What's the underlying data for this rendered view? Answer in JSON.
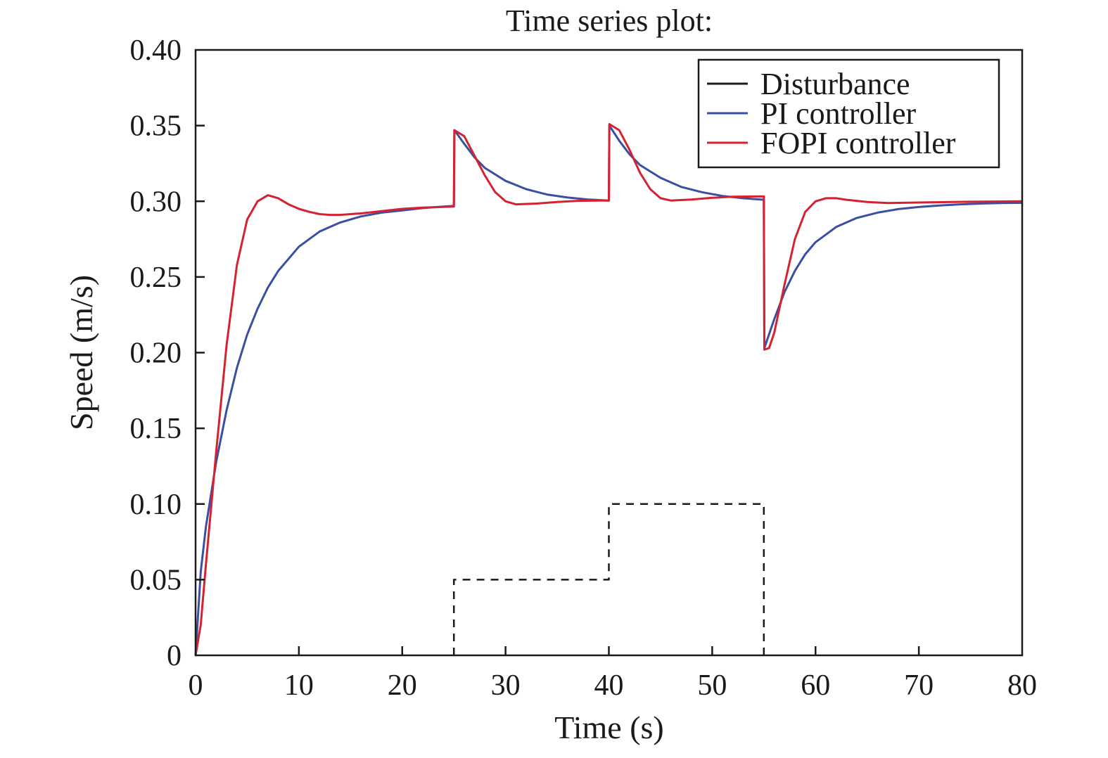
{
  "chart_data": {
    "type": "line",
    "title": "Time series plot:",
    "xlabel": "Time (s)",
    "ylabel": "Speed (m/s)",
    "xlim": [
      0,
      80
    ],
    "ylim": [
      0,
      0.4
    ],
    "xticks": [
      0,
      10,
      20,
      30,
      40,
      50,
      60,
      70,
      80
    ],
    "xtick_labels": [
      "0",
      "10",
      "20",
      "30",
      "40",
      "50",
      "60",
      "70",
      "80"
    ],
    "yticks": [
      0,
      0.05,
      0.1,
      0.15,
      0.2,
      0.25,
      0.3,
      0.35,
      0.4
    ],
    "ytick_labels": [
      "0",
      "0.05",
      "0.10",
      "0.15",
      "0.20",
      "0.25",
      "0.30",
      "0.35",
      "0.40"
    ],
    "grid": false,
    "legend_position": "top-right",
    "series": [
      {
        "name": "Disturbance",
        "color": "#1a1a1a",
        "dashed": true,
        "x": [
          25,
          25,
          40,
          40,
          55,
          55
        ],
        "y": [
          0,
          0.05,
          0.05,
          0.1,
          0.1,
          0
        ]
      },
      {
        "name": "PI controller",
        "color": "#3a4fa3",
        "dashed": false,
        "x": [
          0,
          0.5,
          1,
          2,
          3,
          4,
          5,
          6,
          7,
          8,
          10,
          12,
          14,
          16,
          18,
          20,
          22,
          24,
          25,
          25.05,
          26,
          27,
          28,
          30,
          32,
          34,
          36,
          38,
          40,
          40.05,
          41,
          42,
          43,
          45,
          47,
          49,
          51,
          53,
          55,
          55.05,
          56,
          57,
          58,
          59,
          60,
          62,
          64,
          66,
          68,
          70,
          72,
          74,
          76,
          78,
          80
        ],
        "y": [
          0,
          0.055,
          0.085,
          0.128,
          0.162,
          0.19,
          0.212,
          0.229,
          0.243,
          0.254,
          0.27,
          0.28,
          0.286,
          0.29,
          0.2925,
          0.294,
          0.2955,
          0.2965,
          0.297,
          0.347,
          0.338,
          0.329,
          0.322,
          0.3135,
          0.308,
          0.3045,
          0.3025,
          0.3012,
          0.3005,
          0.35,
          0.34,
          0.331,
          0.324,
          0.3155,
          0.3095,
          0.306,
          0.3035,
          0.302,
          0.301,
          0.203,
          0.222,
          0.24,
          0.254,
          0.265,
          0.273,
          0.283,
          0.289,
          0.2925,
          0.2948,
          0.2962,
          0.2972,
          0.298,
          0.2985,
          0.2988,
          0.299
        ]
      },
      {
        "name": "FOPI controller",
        "color": "#d62230",
        "dashed": false,
        "x": [
          0,
          0.5,
          1,
          2,
          3,
          4,
          5,
          6,
          7,
          8,
          9,
          10,
          11,
          12,
          13,
          14,
          16,
          18,
          20,
          22,
          24,
          25,
          25.05,
          26,
          27,
          28,
          29,
          30,
          31,
          33,
          35,
          37,
          39,
          40,
          40.05,
          41,
          42,
          43,
          44,
          45,
          46,
          48,
          50,
          52,
          54,
          55,
          55.05,
          55.5,
          56,
          57,
          58,
          59,
          60,
          61,
          62,
          63,
          65,
          67,
          70,
          75,
          80
        ],
        "y": [
          0,
          0.02,
          0.06,
          0.135,
          0.205,
          0.258,
          0.288,
          0.3,
          0.304,
          0.302,
          0.298,
          0.295,
          0.293,
          0.2915,
          0.291,
          0.291,
          0.292,
          0.2935,
          0.295,
          0.2958,
          0.2963,
          0.2965,
          0.347,
          0.343,
          0.33,
          0.317,
          0.306,
          0.3,
          0.298,
          0.2985,
          0.2995,
          0.3003,
          0.3005,
          0.3005,
          0.351,
          0.347,
          0.334,
          0.319,
          0.308,
          0.302,
          0.3005,
          0.3012,
          0.3023,
          0.303,
          0.3032,
          0.3032,
          0.202,
          0.203,
          0.213,
          0.245,
          0.275,
          0.293,
          0.3,
          0.302,
          0.302,
          0.301,
          0.2995,
          0.2988,
          0.2992,
          0.2997,
          0.3
        ]
      }
    ]
  }
}
